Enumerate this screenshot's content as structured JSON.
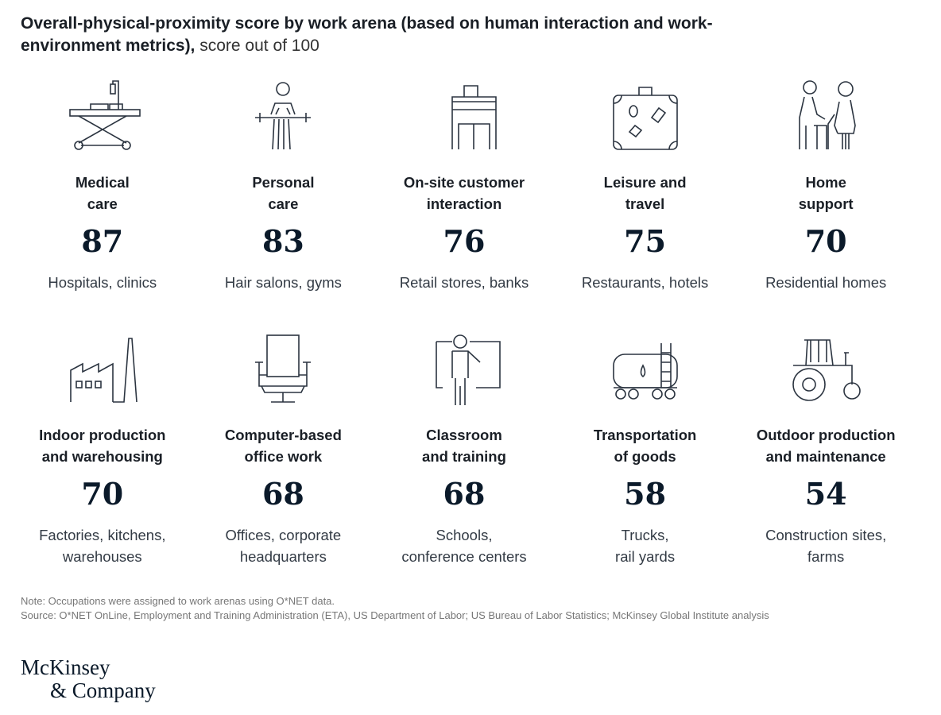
{
  "header": {
    "title_bold": "Overall-physical-proximity score by work arena (based on human interaction and work-environment metrics),",
    "title_light": " score out of 100"
  },
  "arenas": [
    {
      "examples": "Hospitals, clinics",
      "icon": "hospital-bed"
    },
    {
      "examples": "Hair salons, gyms",
      "icon": "salon-client"
    },
    {
      "examples": "Retail stores, banks",
      "icon": "storefront"
    },
    {
      "examples": "Restaurants, hotels",
      "icon": "suitcase"
    },
    {
      "examples": "Residential homes",
      "icon": "caregiver"
    },
    {
      "examples": "Factories, kitchens,\nwarehouses",
      "icon": "factory"
    },
    {
      "examples": "Offices, corporate\nheadquarters",
      "icon": "office-chair"
    },
    {
      "examples": "Schools,\nconference centers",
      "icon": "teacher-board"
    },
    {
      "examples": "Trucks,\nrail yards",
      "icon": "tanker-railcar"
    },
    {
      "examples": "Construction sites,\nfarms",
      "icon": "tractor"
    }
  ],
  "chart_data": {
    "type": "table",
    "title": "Overall-physical-proximity score by work arena (based on human interaction and work-environment metrics), score out of 100",
    "categories": [
      "Medical\ncare",
      "Personal\ncare",
      "On-site customer\ninteraction",
      "Leisure and\ntravel",
      "Home\nsupport",
      "Indoor production\nand warehousing",
      "Computer-based\noffice work",
      "Classroom\nand training",
      "Transportation\nof goods",
      "Outdoor production\nand maintenance"
    ],
    "values": [
      87,
      83,
      76,
      75,
      70,
      70,
      68,
      68,
      58,
      54
    ],
    "ylim": [
      0,
      100
    ]
  },
  "footer": {
    "note": "Note: Occupations were assigned to work arenas using O*NET data.",
    "source": "Source: O*NET OnLine, Employment and Training Administration (ETA), US Department of Labor; US Bureau of Labor Statistics; McKinsey Global Institute analysis",
    "logo_line1": "McKinsey",
    "logo_line2": "& Company"
  }
}
